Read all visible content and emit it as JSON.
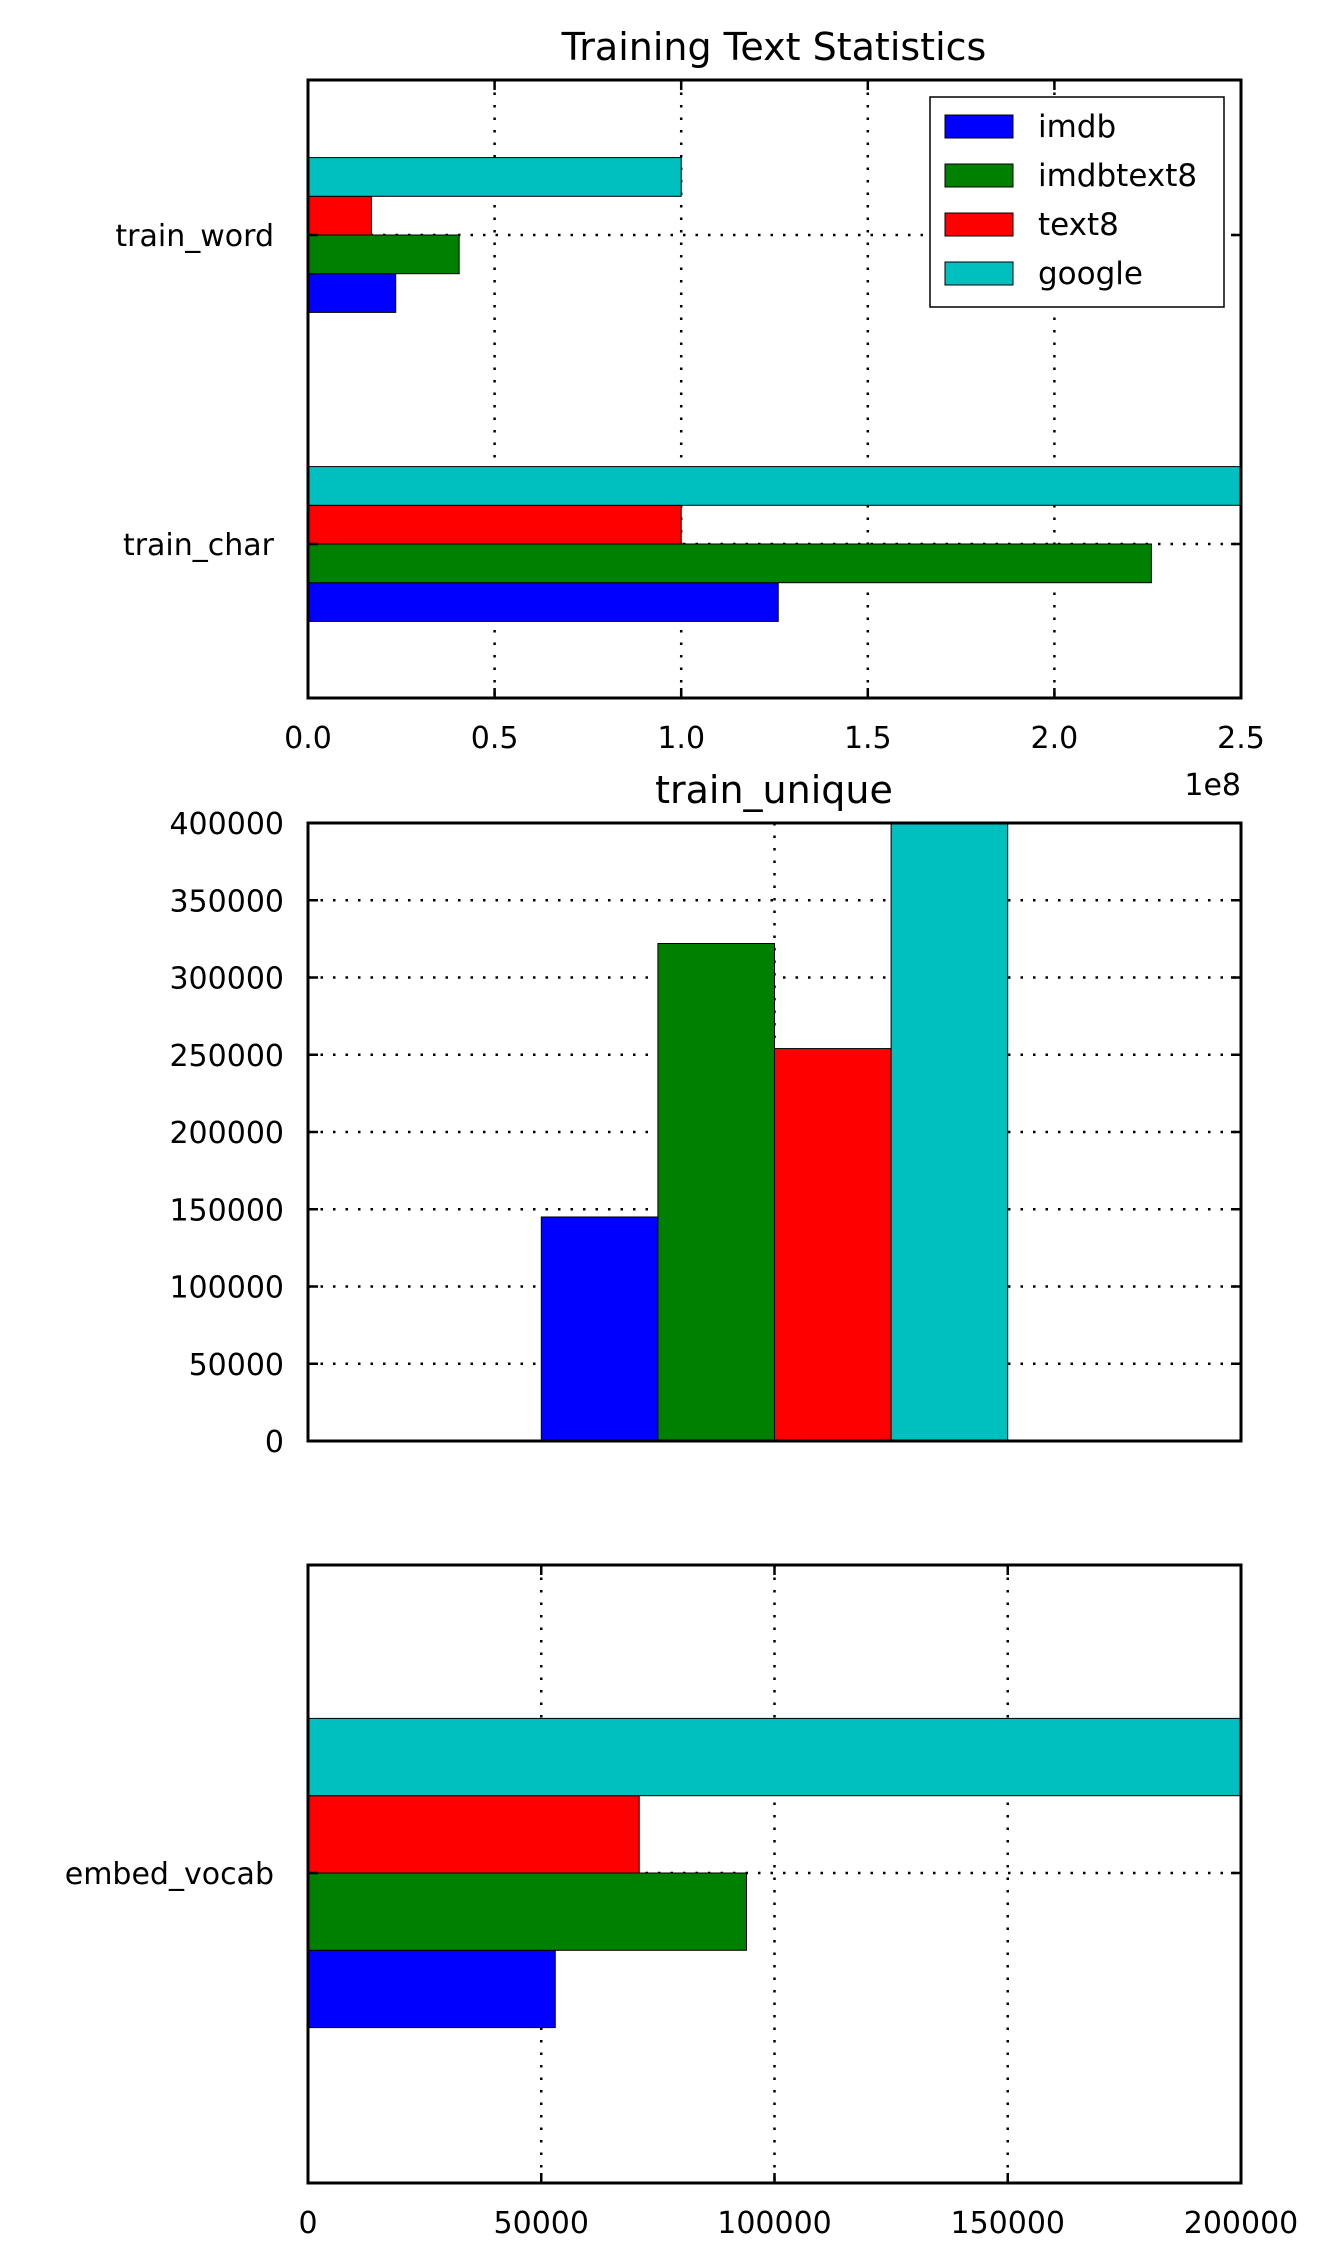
{
  "figure_title": "Training Text Statistics",
  "legend": {
    "placement": "top-right",
    "entries": [
      "imdb",
      "imdbtext8",
      "text8",
      "google"
    ]
  },
  "colors": {
    "imdb": "#0000ff",
    "imdbtext8": "#008000",
    "text8": "#ff0000",
    "google": "#00bfbf"
  },
  "chart_data": [
    {
      "type": "bar",
      "orientation": "horizontal",
      "title": "Training Text Statistics",
      "categories": [
        "train_word",
        "train_char"
      ],
      "series": [
        {
          "name": "imdb",
          "values": [
            23500000,
            126000000
          ]
        },
        {
          "name": "imdbtext8",
          "values": [
            40500000,
            226000000
          ]
        },
        {
          "name": "text8",
          "values": [
            17000000,
            100000000
          ]
        },
        {
          "name": "google",
          "values": [
            100000000,
            250000000
          ]
        }
      ],
      "xlim": [
        0,
        250000000
      ],
      "xticks": [
        "0.0",
        "0.5",
        "1.0",
        "1.5",
        "2.0",
        "2.5"
      ],
      "x_offset_label": "1e8",
      "grid": true,
      "legend": "top-right"
    },
    {
      "type": "bar",
      "orientation": "vertical",
      "title": "train_unique",
      "series": [
        {
          "name": "imdb",
          "values": [
            145000
          ]
        },
        {
          "name": "imdbtext8",
          "values": [
            322000
          ]
        },
        {
          "name": "text8",
          "values": [
            254000
          ]
        },
        {
          "name": "google",
          "values": [
            400000
          ]
        }
      ],
      "ylim": [
        0,
        400000
      ],
      "yticks": [
        "0",
        "50000",
        "100000",
        "150000",
        "200000",
        "250000",
        "300000",
        "350000",
        "400000"
      ],
      "grid": true
    },
    {
      "type": "bar",
      "orientation": "horizontal",
      "categories": [
        "embed_vocab"
      ],
      "series": [
        {
          "name": "imdb",
          "values": [
            53000
          ]
        },
        {
          "name": "imdbtext8",
          "values": [
            94000
          ]
        },
        {
          "name": "text8",
          "values": [
            71000
          ]
        },
        {
          "name": "google",
          "values": [
            200000
          ]
        }
      ],
      "xlim": [
        0,
        200000
      ],
      "xticks": [
        "0",
        "50000",
        "100000",
        "150000",
        "200000"
      ],
      "grid": true
    }
  ]
}
